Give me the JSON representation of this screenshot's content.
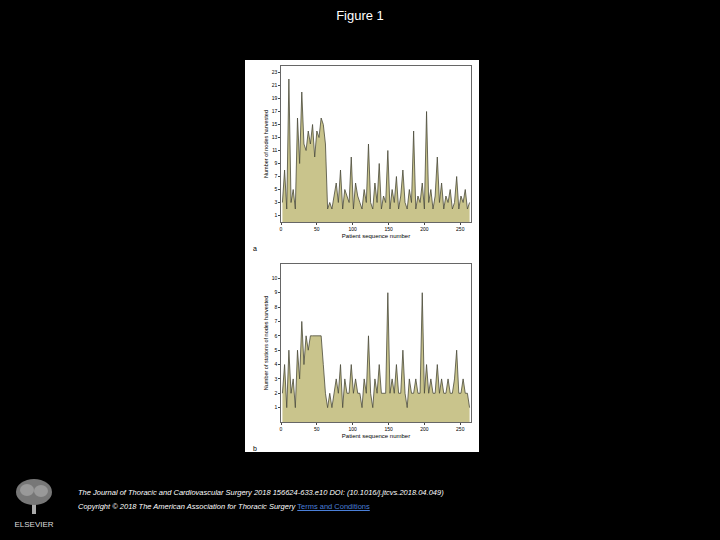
{
  "slide": {
    "title": "Figure 1",
    "citation": "The Journal of Thoracic and Cardiovascular Surgery 2018 156624-633.e10 DOI: (10.1016/j.jtcvs.2018.04.049)",
    "copyright": "Copyright © 2018 The American Association for Thoracic Surgery",
    "link": "Terms and Conditions",
    "logo": "ELSEVIER"
  },
  "chart_data": [
    {
      "type": "area",
      "annotations": [
        "a"
      ],
      "x_label": "Patient sequence number",
      "y_label": "Number of nodes harvested",
      "color": "#c9c48c",
      "line_color": "#4a4a3a",
      "x": [
        2,
        5,
        8,
        11,
        14,
        17,
        20,
        23,
        26,
        29,
        32,
        35,
        38,
        41,
        44,
        47,
        50,
        53,
        56,
        59,
        62,
        65,
        68,
        71,
        74,
        77,
        80,
        83,
        86,
        89,
        92,
        95,
        98,
        101,
        104,
        107,
        110,
        113,
        116,
        119,
        122,
        125,
        128,
        131,
        134,
        137,
        140,
        143,
        146,
        149,
        152,
        155,
        158,
        161,
        164,
        167,
        170,
        173,
        176,
        179,
        182,
        185,
        188,
        191,
        194,
        197,
        200,
        203,
        206,
        209,
        212,
        215,
        218,
        221,
        224,
        227,
        230,
        233,
        236,
        239,
        242,
        245,
        248,
        251,
        254,
        257,
        260,
        263
      ],
      "values": [
        3,
        8,
        2,
        22,
        3,
        5,
        2,
        16,
        9,
        20,
        12,
        11,
        14,
        12,
        15,
        10,
        14,
        13,
        16,
        15,
        12,
        2,
        3,
        2,
        4,
        6,
        3,
        8,
        2,
        5,
        4,
        3,
        10,
        2,
        6,
        4,
        3,
        2,
        5,
        3,
        12,
        3,
        2,
        6,
        3,
        9,
        2,
        4,
        3,
        11,
        2,
        5,
        3,
        7,
        2,
        4,
        8,
        3,
        2,
        5,
        3,
        14,
        2,
        4,
        3,
        6,
        2,
        17,
        3,
        5,
        2,
        4,
        10,
        3,
        6,
        2,
        4,
        3,
        5,
        2,
        3,
        7,
        2,
        4,
        3,
        5,
        2,
        3
      ],
      "xlim": [
        0,
        265
      ],
      "xticks": [
        0,
        50,
        100,
        150,
        200,
        250
      ],
      "ylim": [
        0,
        24
      ],
      "yticks": [
        1,
        3,
        5,
        7,
        9,
        11,
        13,
        15,
        17,
        19,
        21,
        23
      ],
      "grid": false
    },
    {
      "type": "area",
      "annotations": [
        "b"
      ],
      "x_label": "Patient sequence number",
      "y_label": "Number of stations of nodes harvested",
      "color": "#c9c48c",
      "line_color": "#4a4a3a",
      "x": [
        2,
        5,
        8,
        11,
        14,
        17,
        20,
        23,
        26,
        29,
        32,
        35,
        38,
        41,
        44,
        47,
        50,
        53,
        56,
        59,
        62,
        65,
        68,
        71,
        74,
        77,
        80,
        83,
        86,
        89,
        92,
        95,
        98,
        101,
        104,
        107,
        110,
        113,
        116,
        119,
        122,
        125,
        128,
        131,
        134,
        137,
        140,
        143,
        146,
        149,
        152,
        155,
        158,
        161,
        164,
        167,
        170,
        173,
        176,
        179,
        182,
        185,
        188,
        191,
        194,
        197,
        200,
        203,
        206,
        209,
        212,
        215,
        218,
        221,
        224,
        227,
        230,
        233,
        236,
        239,
        242,
        245,
        248,
        251,
        254,
        257,
        260,
        263
      ],
      "values": [
        2,
        4,
        1,
        5,
        2,
        3,
        1,
        5,
        3,
        7,
        4,
        6,
        5,
        6,
        6,
        6,
        6,
        6,
        6,
        4,
        2,
        1,
        2,
        1,
        2,
        3,
        2,
        4,
        1,
        3,
        2,
        2,
        4,
        2,
        3,
        2,
        2,
        1,
        3,
        2,
        6,
        2,
        1,
        3,
        2,
        4,
        2,
        2,
        2,
        9,
        2,
        3,
        2,
        4,
        2,
        2,
        5,
        2,
        1,
        3,
        2,
        2,
        3,
        2,
        2,
        9,
        2,
        4,
        2,
        3,
        2,
        2,
        4,
        2,
        3,
        2,
        2,
        3,
        2,
        2,
        3,
        5,
        2,
        2,
        3,
        2,
        2,
        1
      ],
      "xlim": [
        0,
        265
      ],
      "xticks": [
        0,
        50,
        100,
        150,
        200,
        250
      ],
      "ylim": [
        0,
        11
      ],
      "yticks": [
        1,
        2,
        3,
        4,
        5,
        6,
        7,
        8,
        9,
        10
      ],
      "grid": false
    }
  ]
}
